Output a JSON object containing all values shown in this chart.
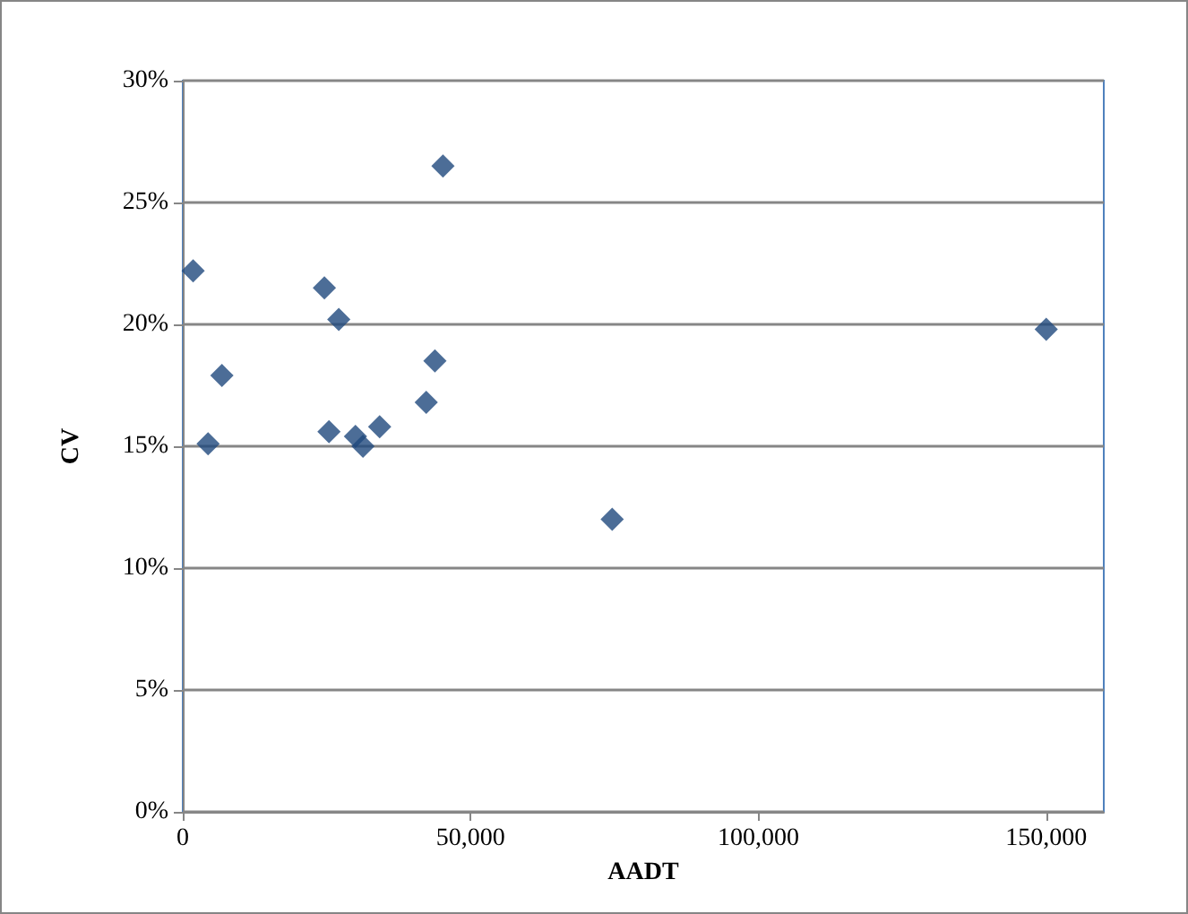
{
  "chart_data": {
    "type": "scatter",
    "xlabel": "AADT",
    "ylabel": "CV",
    "x": [
      1800,
      6800,
      4400,
      24600,
      27100,
      25400,
      30000,
      31300,
      34200,
      42300,
      43800,
      45200,
      74600,
      150000
    ],
    "values": [
      22.2,
      17.9,
      15.1,
      21.5,
      20.2,
      15.6,
      15.4,
      15.0,
      15.8,
      16.8,
      18.5,
      26.5,
      12.0,
      19.8
    ],
    "color": "#1f497d",
    "marker": "diamond",
    "grid": "y",
    "xlim": [
      0,
      160000
    ],
    "xticks": [
      {
        "value": 0,
        "label": "0"
      },
      {
        "value": 50000,
        "label": "50,000"
      },
      {
        "value": 100000,
        "label": "100,000"
      },
      {
        "value": 150000,
        "label": "150,000"
      }
    ],
    "ylim": [
      0,
      30
    ],
    "yticks": [
      {
        "value": 0,
        "label": "0%"
      },
      {
        "value": 5,
        "label": "5%"
      },
      {
        "value": 10,
        "label": "10%"
      },
      {
        "value": 15,
        "label": "15%"
      },
      {
        "value": 20,
        "label": "20%"
      },
      {
        "value": 25,
        "label": "25%"
      },
      {
        "value": 30,
        "label": "30%"
      }
    ]
  }
}
